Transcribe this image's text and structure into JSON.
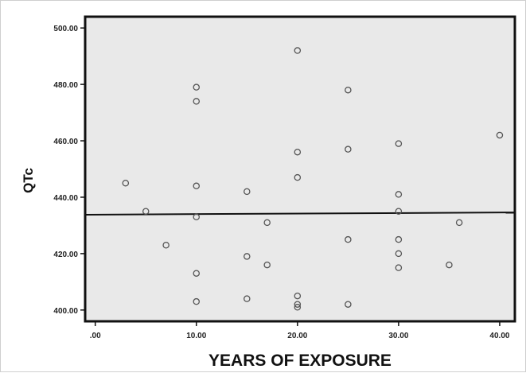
{
  "chart_data": {
    "type": "scatter",
    "title": "",
    "xlabel": "YEARS OF EXPOSURE",
    "ylabel": "QTc",
    "xlim": [
      -1,
      41.5
    ],
    "ylim": [
      396,
      504
    ],
    "x_ticks": [
      0,
      10,
      20,
      30,
      40
    ],
    "x_tick_labels": [
      ".00",
      "10.00",
      "20.00",
      "30.00",
      "40.00"
    ],
    "y_ticks": [
      400,
      420,
      440,
      460,
      480,
      500
    ],
    "y_tick_labels": [
      "400.00",
      "420.00",
      "440.00",
      "460.00",
      "480.00",
      "500.00"
    ],
    "grid": false,
    "legend": "none",
    "points": [
      {
        "x": 3,
        "y": 445
      },
      {
        "x": 5,
        "y": 435
      },
      {
        "x": 7,
        "y": 423
      },
      {
        "x": 10,
        "y": 479
      },
      {
        "x": 10,
        "y": 474
      },
      {
        "x": 10,
        "y": 444
      },
      {
        "x": 10,
        "y": 433
      },
      {
        "x": 10,
        "y": 413
      },
      {
        "x": 10,
        "y": 403
      },
      {
        "x": 15,
        "y": 442
      },
      {
        "x": 15,
        "y": 419
      },
      {
        "x": 15,
        "y": 404
      },
      {
        "x": 17,
        "y": 431
      },
      {
        "x": 17,
        "y": 416
      },
      {
        "x": 20,
        "y": 492
      },
      {
        "x": 20,
        "y": 456
      },
      {
        "x": 20,
        "y": 447
      },
      {
        "x": 20,
        "y": 405
      },
      {
        "x": 20,
        "y": 402
      },
      {
        "x": 20,
        "y": 401
      },
      {
        "x": 25,
        "y": 478
      },
      {
        "x": 25,
        "y": 457
      },
      {
        "x": 25,
        "y": 425
      },
      {
        "x": 25,
        "y": 402
      },
      {
        "x": 30,
        "y": 459
      },
      {
        "x": 30,
        "y": 441
      },
      {
        "x": 30,
        "y": 435
      },
      {
        "x": 30,
        "y": 425
      },
      {
        "x": 30,
        "y": 420
      },
      {
        "x": 30,
        "y": 415
      },
      {
        "x": 35,
        "y": 416
      },
      {
        "x": 36,
        "y": 431
      },
      {
        "x": 40,
        "y": 462
      }
    ],
    "fit_line": {
      "x": [
        -1,
        41.5
      ],
      "y": [
        433.8,
        434.6
      ]
    },
    "colors": {
      "plot_background": "#e9e9e9",
      "frame": "#111111",
      "marker": "#555555",
      "fit_line": "#111111"
    }
  }
}
